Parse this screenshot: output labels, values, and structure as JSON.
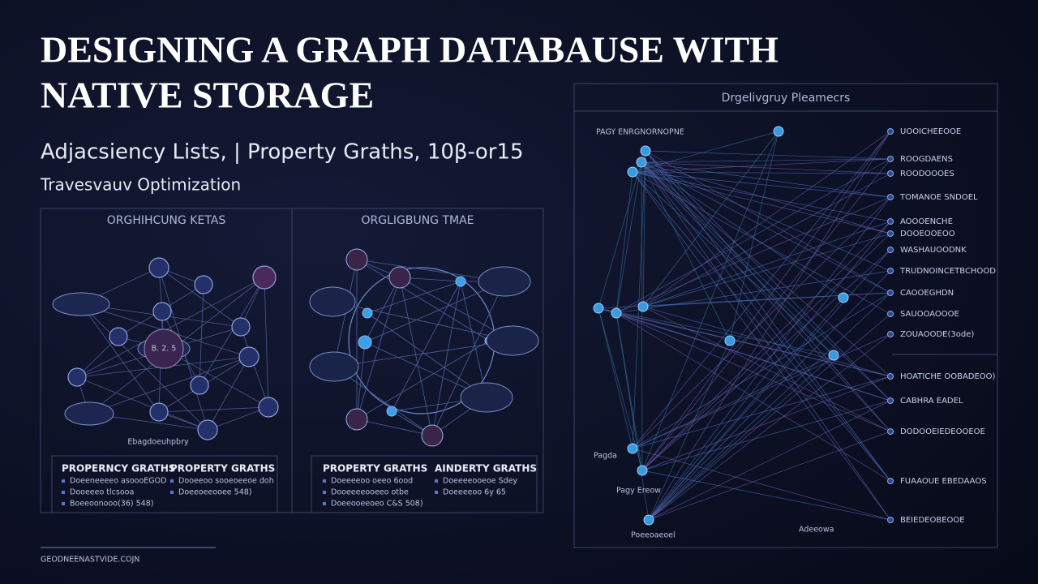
{
  "header": {
    "title_lines": [
      "DESIGNING A GRAPH DATABAUSE WITH",
      "NATIVE STORAGE"
    ],
    "subtitle": "Adjacsiency Lists, | Property Graths, 10β-or15",
    "tagline": "Travesvauv Optimization"
  },
  "panels": [
    {
      "title": "ORGHIHCUNG KETAS",
      "center_label": "B. 2. 5",
      "caption": "Ebagdoeuhpbry"
    },
    {
      "title": "ORGLIGBUNG TMAE"
    }
  ],
  "legends": [
    {
      "title": "PROPERNCY GRATHS",
      "items": [
        "Doeeneeeeo asoooEGOD",
        "Dooeeeo tlcsooa",
        "Boeeoonooo(36) 548)"
      ]
    },
    {
      "title": "PROPERTY GRATHS",
      "items": [
        "Dooeeoo sooeoeeoe doh",
        "Doeeoeeooee 548)"
      ]
    },
    {
      "title": "PROPERTY GRATHS",
      "items": [
        "Doeeeeoo oeeo 6ood",
        "Dooeeeeooeeo otbe",
        "Doeeooeeoeo C&S 508)"
      ]
    },
    {
      "title": "AINDERTY GRATHS",
      "items": [
        "Doeeeeooeoe Sdey",
        "Doeeeeoo 6y 65"
      ]
    }
  ],
  "diagram": {
    "title": "Drgelivgruy Pleamecrs",
    "top_label": "PAGY ENRGNORNOPNE",
    "bottom_labels": [
      "Pagda",
      "Pagy Ereow",
      "Poeeoaeoel",
      "Adeeowa"
    ],
    "right_labels": [
      "UOOICHEEOOE",
      "ROOGDAENS",
      "ROODOOOES",
      "TOMANOE SNDOEL",
      "AOOOENCHE",
      "DOOEOOEOO",
      "WASHAUOODNK",
      "TRUDNOINCETBCHOOD",
      "CAOOEGHDN",
      "SAUOOAOOOE",
      "ZOUAOODE(3ode)",
      "HOATICHE OOBADEOO)",
      "CABHRA EADEL",
      "DODOOEIEDEOOEOE",
      "FUAAOUE EBEDAAOS",
      "BEIEDEOBEOOE"
    ]
  },
  "footer": "GEODNEENASTVIDE.COJN"
}
